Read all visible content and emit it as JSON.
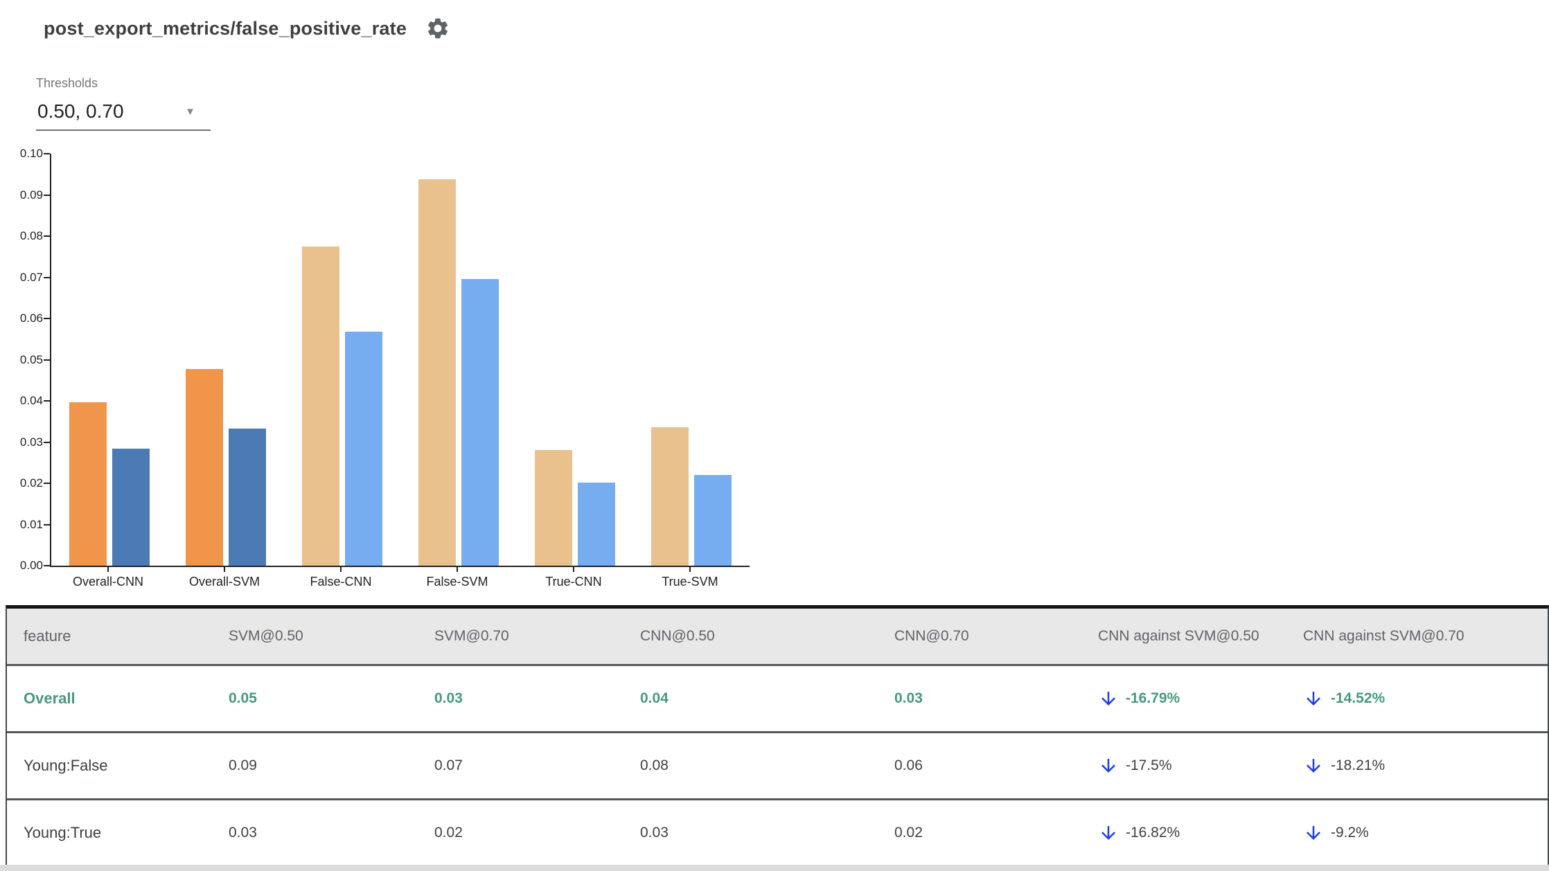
{
  "header": {
    "title": "post_export_metrics/false_positive_rate",
    "settings_icon": "gear-icon"
  },
  "thresholds": {
    "label": "Thresholds",
    "value": "0.50, 0.70",
    "caret_icon": "chevron-down-icon"
  },
  "chart_data": {
    "type": "bar",
    "title": "",
    "xlabel": "",
    "ylabel": "",
    "categories": [
      "Overall-CNN",
      "Overall-SVM",
      "False-CNN",
      "False-SVM",
      "True-CNN",
      "True-SVM"
    ],
    "series": [
      {
        "name": "threshold 0.50",
        "values": [
          0.0397,
          0.0477,
          0.0774,
          0.0938,
          0.028,
          0.0337
        ]
      },
      {
        "name": "threshold 0.70",
        "values": [
          0.0284,
          0.0332,
          0.0568,
          0.0695,
          0.0201,
          0.0221
        ]
      }
    ],
    "highlighted_categories": [
      "Overall-CNN",
      "Overall-SVM"
    ],
    "ylim": [
      0,
      0.1
    ],
    "ytick_step": 0.01,
    "yticks": [
      "0.00",
      "0.01",
      "0.02",
      "0.03",
      "0.04",
      "0.05",
      "0.06",
      "0.07",
      "0.08",
      "0.09",
      "0.10"
    ],
    "grid": false,
    "legend": "none",
    "colors": {
      "highlight_t50": "#f0954a",
      "highlight_t70": "#4c7ab5",
      "muted_t50": "#e9c18d",
      "muted_t70": "#76adf0"
    }
  },
  "table": {
    "columns": [
      "feature",
      "SVM@0.50",
      "SVM@0.70",
      "CNN@0.50",
      "CNN@0.70",
      "CNN against SVM@0.50",
      "CNN against SVM@0.70"
    ],
    "rows": [
      {
        "feature": "Overall",
        "values": [
          "0.05",
          "0.03",
          "0.04",
          "0.03"
        ],
        "deltas": [
          "-16.79%",
          "-14.52%"
        ],
        "highlighted": true
      },
      {
        "feature": "Young:False",
        "values": [
          "0.09",
          "0.07",
          "0.08",
          "0.06"
        ],
        "deltas": [
          "-17.5%",
          "-18.21%"
        ],
        "highlighted": false
      },
      {
        "feature": "Young:True",
        "values": [
          "0.03",
          "0.02",
          "0.03",
          "0.02"
        ],
        "deltas": [
          "-16.82%",
          "-9.2%"
        ],
        "highlighted": false
      }
    ],
    "delta_icon": "arrow-down-icon"
  },
  "colors": {
    "accent_green": "#47997d",
    "arrow_blue": "#1e3bee",
    "header_bg": "#e8e8e8",
    "header_text": "#5f6368",
    "body_text": "#3c4043",
    "axis": "#1f2023"
  }
}
